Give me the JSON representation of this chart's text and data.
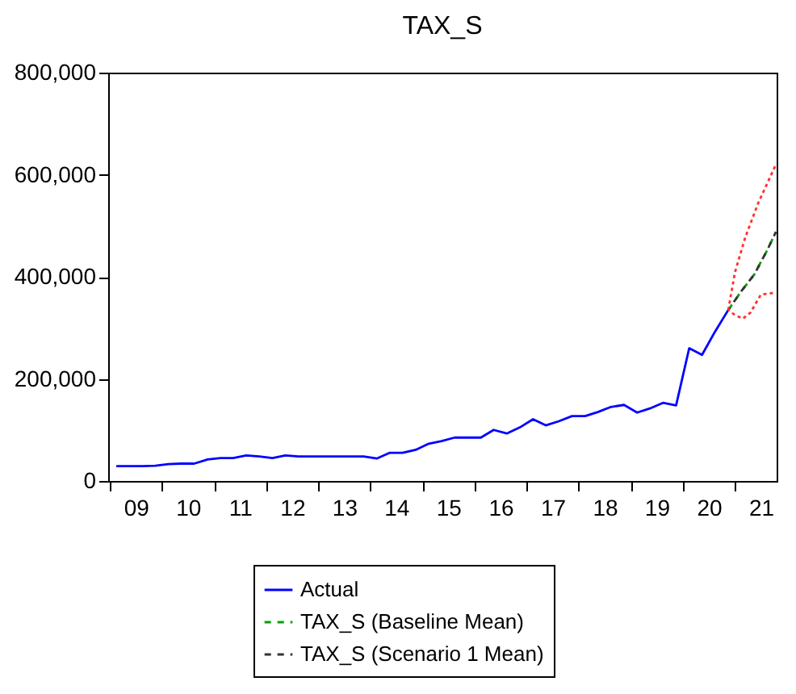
{
  "chart_data": {
    "type": "line",
    "title": "TAX_S",
    "x": [
      "2009-02-15",
      "2009-05-15",
      "2009-08-15",
      "2009-11-15",
      "2010-02-15",
      "2010-05-15",
      "2010-08-15",
      "2010-11-15",
      "2011-02-15",
      "2011-05-15",
      "2011-08-15",
      "2011-11-15",
      "2012-02-15",
      "2012-05-15",
      "2012-08-15",
      "2012-11-15",
      "2013-02-15",
      "2013-05-15",
      "2013-08-15",
      "2013-11-15",
      "2014-02-15",
      "2014-05-15",
      "2014-08-15",
      "2014-11-15",
      "2015-02-15",
      "2015-05-15",
      "2015-08-15",
      "2015-11-15",
      "2016-02-15",
      "2016-05-15",
      "2016-08-15",
      "2016-11-15",
      "2017-02-15",
      "2017-05-15",
      "2017-08-15",
      "2017-11-15",
      "2018-02-15",
      "2018-05-15",
      "2018-08-15",
      "2018-11-15",
      "2019-02-15",
      "2019-05-15",
      "2019-08-15",
      "2019-11-15",
      "2020-02-15",
      "2020-05-15",
      "2020-08-15",
      "2020-11-15",
      "2021-02-15",
      "2021-05-15",
      "2021-08-15",
      "2021-10-15"
    ],
    "series": [
      {
        "name": "Actual",
        "color": "#0000ff",
        "line_style": "solid",
        "values": [
          29000,
          29000,
          29000,
          30000,
          33000,
          34000,
          34000,
          42000,
          45000,
          45000,
          50000,
          48000,
          45000,
          50000,
          48000,
          48000,
          48000,
          48000,
          48000,
          48000,
          44000,
          55000,
          55000,
          61000,
          73000,
          78000,
          85000,
          85000,
          85000,
          100000,
          93000,
          105000,
          121000,
          109000,
          117000,
          127000,
          127000,
          135000,
          145000,
          149000,
          134000,
          142000,
          153000,
          148000,
          260000,
          247000,
          293000,
          335000,
          null,
          null,
          null,
          null
        ]
      },
      {
        "name": "TAX_S (Baseline Mean)",
        "color": "#00a000",
        "line_style": "dashed",
        "values": [
          null,
          null,
          null,
          null,
          null,
          null,
          null,
          null,
          null,
          null,
          null,
          null,
          null,
          null,
          null,
          null,
          null,
          null,
          null,
          null,
          null,
          null,
          null,
          null,
          null,
          null,
          null,
          null,
          null,
          null,
          null,
          null,
          null,
          null,
          null,
          null,
          null,
          null,
          null,
          null,
          null,
          null,
          null,
          null,
          null,
          null,
          null,
          335000,
          372000,
          404000,
          452000,
          488000
        ]
      },
      {
        "name": "TAX_S (Scenario 1 Mean)",
        "color": "#333333",
        "line_style": "dashed",
        "values": [
          null,
          null,
          null,
          null,
          null,
          null,
          null,
          null,
          null,
          null,
          null,
          null,
          null,
          null,
          null,
          null,
          null,
          null,
          null,
          null,
          null,
          null,
          null,
          null,
          null,
          null,
          null,
          null,
          null,
          null,
          null,
          null,
          null,
          null,
          null,
          null,
          null,
          null,
          null,
          null,
          null,
          null,
          null,
          null,
          null,
          null,
          null,
          335000,
          372000,
          404000,
          452000,
          488000
        ]
      },
      {
        "color": "#ff3030",
        "line_style": "dotted",
        "x": [
          "2020-11-15",
          "2021-01-01",
          "2021-03-15",
          "2021-06-15",
          "2021-10-15"
        ],
        "values": [
          335000,
          409000,
          478000,
          546000,
          620000
        ]
      },
      {
        "color": "#ff3030",
        "line_style": "dotted",
        "x": [
          "2020-11-15",
          "2021-01-01",
          "2021-02-25",
          "2021-04-20",
          "2021-07-01",
          "2021-10-15"
        ],
        "values": [
          335000,
          325000,
          318000,
          330000,
          365000,
          369000
        ]
      }
    ],
    "xlim": [
      "2008-12-20",
      "2021-10-20"
    ],
    "xticks": [
      {
        "value": "2009-01-01",
        "label": null
      },
      {
        "value": "2009-07-02",
        "label": "09"
      },
      {
        "value": "2010-01-01",
        "label": null
      },
      {
        "value": "2010-07-02",
        "label": "10"
      },
      {
        "value": "2011-01-01",
        "label": null
      },
      {
        "value": "2011-07-02",
        "label": "11"
      },
      {
        "value": "2012-01-01",
        "label": null
      },
      {
        "value": "2012-07-02",
        "label": "12"
      },
      {
        "value": "2013-01-01",
        "label": null
      },
      {
        "value": "2013-07-02",
        "label": "13"
      },
      {
        "value": "2014-01-01",
        "label": null
      },
      {
        "value": "2014-07-02",
        "label": "14"
      },
      {
        "value": "2015-01-01",
        "label": null
      },
      {
        "value": "2015-07-02",
        "label": "15"
      },
      {
        "value": "2016-01-01",
        "label": null
      },
      {
        "value": "2016-07-02",
        "label": "16"
      },
      {
        "value": "2017-01-01",
        "label": null
      },
      {
        "value": "2017-07-02",
        "label": "17"
      },
      {
        "value": "2018-01-01",
        "label": null
      },
      {
        "value": "2018-07-02",
        "label": "18"
      },
      {
        "value": "2019-01-01",
        "label": null
      },
      {
        "value": "2019-07-02",
        "label": "19"
      },
      {
        "value": "2020-01-01",
        "label": null
      },
      {
        "value": "2020-07-02",
        "label": "20"
      },
      {
        "value": "2021-01-01",
        "label": null
      },
      {
        "value": "2021-07-02",
        "label": "21"
      }
    ],
    "ylim": [
      0,
      800000
    ],
    "yticks": [
      {
        "value": 0,
        "label": "0"
      },
      {
        "value": 200000,
        "label": "200,000"
      },
      {
        "value": 400000,
        "label": "400,000"
      },
      {
        "value": 600000,
        "label": "600,000"
      },
      {
        "value": 800000,
        "label": "800,000"
      }
    ],
    "grid": false,
    "legend": "bottom",
    "marker": "none"
  }
}
